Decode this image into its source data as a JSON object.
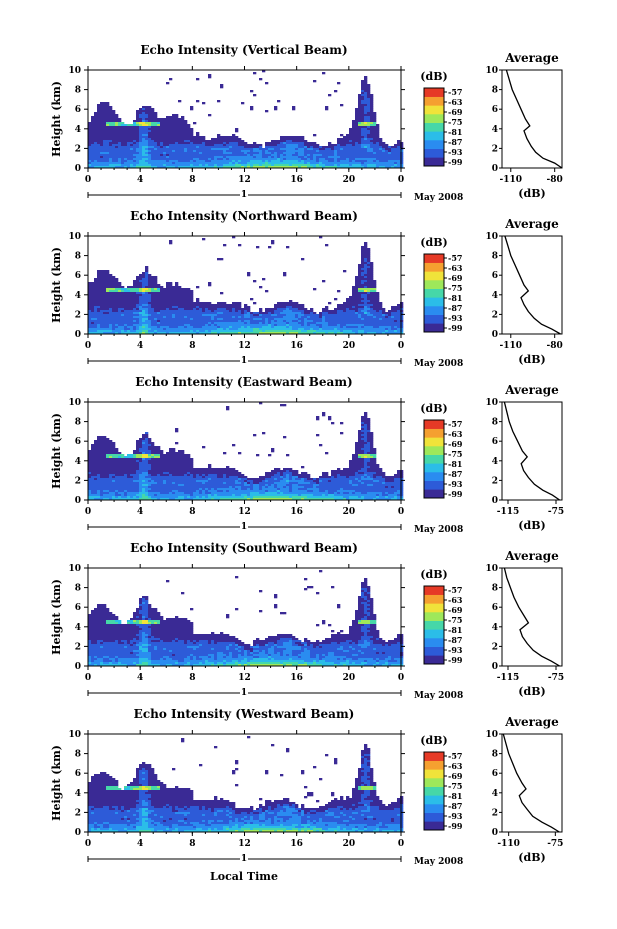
{
  "chart_data": {
    "type": "heatmap",
    "xlabel": "Local Time",
    "x_ticks": [
      "0",
      "4",
      "8",
      "12",
      "16",
      "20",
      "0"
    ],
    "xlim": [
      0,
      24
    ],
    "date_label": "May 2008",
    "day_label": "1",
    "ylabel": "Height (km)",
    "y_ticks": [
      "0",
      "2",
      "4",
      "6",
      "8",
      "10"
    ],
    "ylim": [
      0,
      10
    ],
    "colorbar": {
      "unit": "(dB)",
      "ticks": [
        "-57",
        "-63",
        "-69",
        "-75",
        "-81",
        "-87",
        "-93",
        "-99"
      ],
      "colors": [
        "#3a2a95",
        "#2d5bd8",
        "#2a8cf0",
        "#2bbde8",
        "#46d7a8",
        "#9ee85a",
        "#f0e33a",
        "#f5a030",
        "#e63a26"
      ]
    },
    "average_title": "Average",
    "average_xlabel": "(dB)",
    "panels": [
      {
        "title": "Echo Intensity (Vertical Beam)",
        "avg_xticks": [
          {
            "label": "-110",
            "v": -110
          },
          {
            "label": "-80",
            "v": -80
          }
        ],
        "avg_xlim": [
          -116,
          -75
        ],
        "avg_profile": [
          [
            -75,
            0
          ],
          [
            -80,
            0.5
          ],
          [
            -88,
            1
          ],
          [
            -93,
            1.6
          ],
          [
            -96,
            2.2
          ],
          [
            -99,
            3
          ],
          [
            -101,
            3.8
          ],
          [
            -97,
            4.3
          ],
          [
            -100,
            5
          ],
          [
            -103,
            6
          ],
          [
            -106,
            7
          ],
          [
            -109,
            8
          ],
          [
            -111,
            9
          ],
          [
            -113,
            10
          ]
        ]
      },
      {
        "title": "Echo Intensity (Northward Beam)",
        "avg_xticks": [
          {
            "label": "-110",
            "v": -110
          },
          {
            "label": "-80",
            "v": -80
          }
        ],
        "avg_xlim": [
          -116,
          -75
        ],
        "avg_profile": [
          [
            -76,
            0
          ],
          [
            -82,
            0.5
          ],
          [
            -89,
            1
          ],
          [
            -94,
            1.6
          ],
          [
            -98,
            2.3
          ],
          [
            -101,
            3
          ],
          [
            -103,
            3.7
          ],
          [
            -98,
            4.4
          ],
          [
            -101,
            5
          ],
          [
            -104,
            6
          ],
          [
            -107,
            7
          ],
          [
            -110,
            8
          ],
          [
            -112,
            9
          ],
          [
            -114,
            10
          ]
        ]
      },
      {
        "title": "Echo Intensity (Eastward Beam)",
        "avg_xticks": [
          {
            "label": "-115",
            "v": -115
          },
          {
            "label": "-75",
            "v": -75
          }
        ],
        "avg_xlim": [
          -120,
          -70
        ],
        "avg_profile": [
          [
            -72,
            0
          ],
          [
            -78,
            0.5
          ],
          [
            -86,
            1
          ],
          [
            -93,
            1.6
          ],
          [
            -98,
            2.3
          ],
          [
            -102,
            3
          ],
          [
            -104,
            3.7
          ],
          [
            -99,
            4.4
          ],
          [
            -103,
            5
          ],
          [
            -107,
            6
          ],
          [
            -111,
            7
          ],
          [
            -114,
            8
          ],
          [
            -116,
            9
          ],
          [
            -118,
            10
          ]
        ]
      },
      {
        "title": "Echo Intensity (Southward Beam)",
        "avg_xticks": [
          {
            "label": "-115",
            "v": -115
          },
          {
            "label": "-75",
            "v": -75
          }
        ],
        "avg_xlim": [
          -120,
          -70
        ],
        "avg_profile": [
          [
            -72,
            0
          ],
          [
            -79,
            0.5
          ],
          [
            -87,
            1
          ],
          [
            -94,
            1.6
          ],
          [
            -99,
            2.3
          ],
          [
            -103,
            3
          ],
          [
            -105,
            3.7
          ],
          [
            -98,
            4.4
          ],
          [
            -101,
            5
          ],
          [
            -106,
            6
          ],
          [
            -110,
            7
          ],
          [
            -113,
            8
          ],
          [
            -116,
            9
          ],
          [
            -118,
            10
          ]
        ]
      },
      {
        "title": "Echo Intensity (Westward Beam)",
        "avg_xticks": [
          {
            "label": "-110",
            "v": -110
          },
          {
            "label": "-75",
            "v": -75
          }
        ],
        "avg_xlim": [
          -115,
          -70
        ],
        "avg_profile": [
          [
            -72,
            0
          ],
          [
            -78,
            0.5
          ],
          [
            -85,
            1
          ],
          [
            -92,
            1.6
          ],
          [
            -96,
            2.3
          ],
          [
            -100,
            3
          ],
          [
            -102,
            3.7
          ],
          [
            -97,
            4.4
          ],
          [
            -100,
            5
          ],
          [
            -104,
            6
          ],
          [
            -107,
            7
          ],
          [
            -110,
            8
          ],
          [
            -112,
            9
          ],
          [
            -114,
            10
          ]
        ]
      }
    ]
  }
}
